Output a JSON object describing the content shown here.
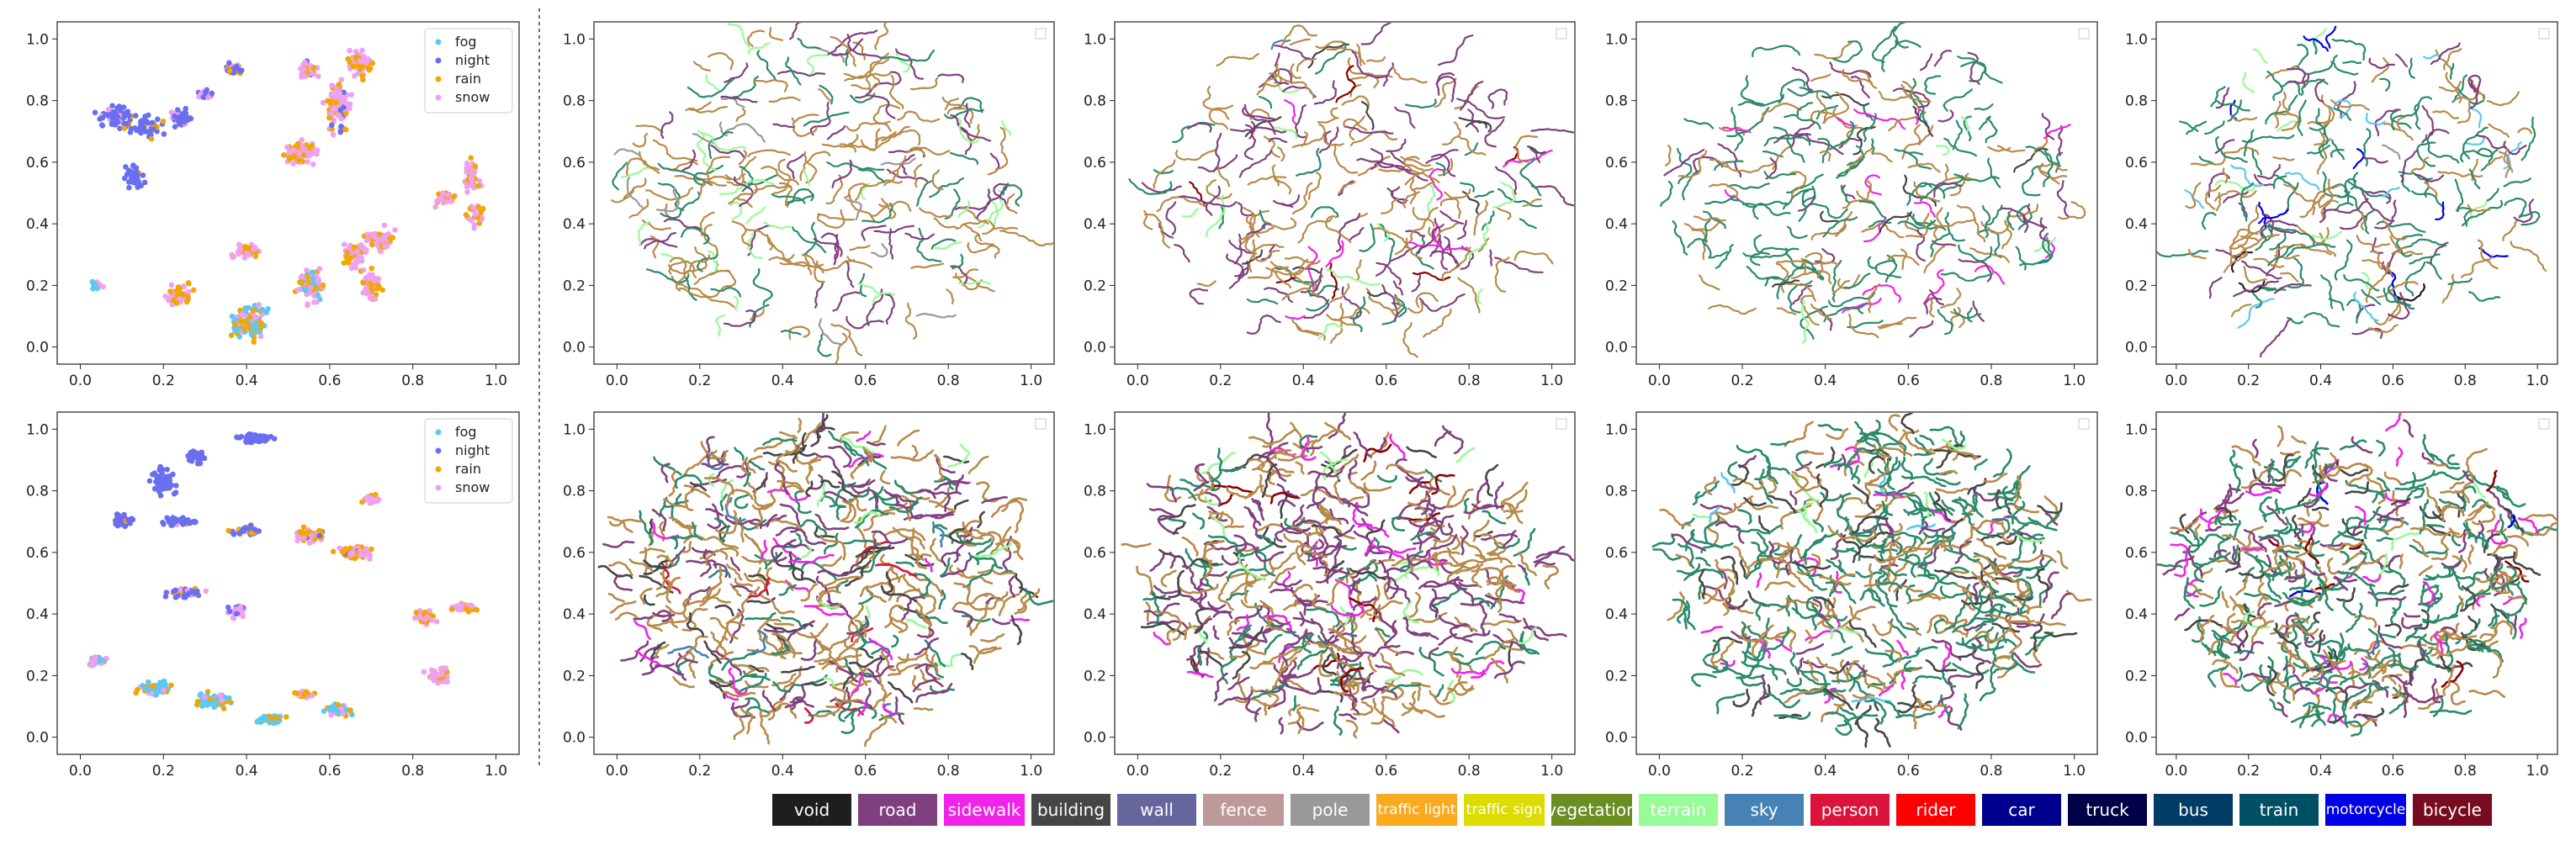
{
  "figure": {
    "description_panels": "2 rows x 5 columns of 2D embedding scatter plots; left column colored by weather condition, other columns colored by semantic class"
  },
  "conditions": [
    {
      "label": "fog",
      "color": "#5bc8f5"
    },
    {
      "label": "night",
      "color": "#6a6ff0"
    },
    {
      "label": "rain",
      "color": "#f0a800"
    },
    {
      "label": "snow",
      "color": "#f0a0f0"
    }
  ],
  "classes": [
    {
      "label": "void",
      "color": "#1e1e1e"
    },
    {
      "label": "road",
      "color": "#80407f"
    },
    {
      "label": "sidewalk",
      "color": "#f023e8"
    },
    {
      "label": "building",
      "color": "#464646"
    },
    {
      "label": "wall",
      "color": "#66669c"
    },
    {
      "label": "fence",
      "color": "#be9999"
    },
    {
      "label": "pole",
      "color": "#999999"
    },
    {
      "label": "traffic light",
      "color": "#faaa1e"
    },
    {
      "label": "traffic sign",
      "color": "#dcdc00"
    },
    {
      "label": "vegetation",
      "color": "#6b8e23"
    },
    {
      "label": "terrain",
      "color": "#98fb98"
    },
    {
      "label": "sky",
      "color": "#4682b4"
    },
    {
      "label": "person",
      "color": "#dc143c"
    },
    {
      "label": "rider",
      "color": "#ff0000"
    },
    {
      "label": "car",
      "color": "#00008e"
    },
    {
      "label": "truck",
      "color": "#000046"
    },
    {
      "label": "bus",
      "color": "#003c64"
    },
    {
      "label": "train",
      "color": "#005064"
    },
    {
      "label": "motorcycle",
      "color": "#0000e6"
    },
    {
      "label": "bicycle",
      "color": "#770b20"
    }
  ],
  "chart_data": [
    {
      "type": "scatter",
      "row": 0,
      "col": 0,
      "colored_by": "condition",
      "xlim": [
        0,
        1
      ],
      "ylim": [
        0,
        1
      ],
      "xticks": [
        "0.0",
        "0.2",
        "0.4",
        "0.6",
        "0.8",
        "1.0"
      ],
      "yticks": [
        "0.0",
        "0.2",
        "0.4",
        "0.6",
        "0.8",
        "1.0"
      ],
      "legend": [
        "fog",
        "night",
        "rain",
        "snow"
      ],
      "legend_position": "top-right",
      "clusters": [
        {
          "x": 0.08,
          "y": 0.75,
          "w": 0.05,
          "h": 0.05,
          "n": 50,
          "mix": {
            "night": 0.85,
            "snow": 0.15
          }
        },
        {
          "x": 0.15,
          "y": 0.72,
          "w": 0.06,
          "h": 0.05,
          "n": 50,
          "mix": {
            "night": 0.85,
            "rain": 0.15
          }
        },
        {
          "x": 0.13,
          "y": 0.55,
          "w": 0.03,
          "h": 0.05,
          "n": 40,
          "mix": {
            "night": 0.9,
            "rain": 0.1
          }
        },
        {
          "x": 0.24,
          "y": 0.74,
          "w": 0.04,
          "h": 0.04,
          "n": 40,
          "mix": {
            "night": 0.85,
            "snow": 0.15
          }
        },
        {
          "x": 0.3,
          "y": 0.82,
          "w": 0.03,
          "h": 0.02,
          "n": 20,
          "mix": {
            "night": 0.7,
            "snow": 0.3
          }
        },
        {
          "x": 0.37,
          "y": 0.9,
          "w": 0.03,
          "h": 0.03,
          "n": 40,
          "mix": {
            "night": 0.5,
            "rain": 0.3,
            "snow": 0.2
          }
        },
        {
          "x": 0.55,
          "y": 0.9,
          "w": 0.03,
          "h": 0.04,
          "n": 40,
          "mix": {
            "snow": 0.6,
            "rain": 0.3,
            "night": 0.1
          }
        },
        {
          "x": 0.62,
          "y": 0.78,
          "w": 0.04,
          "h": 0.12,
          "n": 100,
          "mix": {
            "snow": 0.6,
            "rain": 0.35,
            "night": 0.05
          }
        },
        {
          "x": 0.67,
          "y": 0.92,
          "w": 0.04,
          "h": 0.06,
          "n": 60,
          "mix": {
            "snow": 0.6,
            "rain": 0.4
          }
        },
        {
          "x": 0.53,
          "y": 0.63,
          "w": 0.05,
          "h": 0.05,
          "n": 80,
          "mix": {
            "snow": 0.6,
            "rain": 0.4
          }
        },
        {
          "x": 0.94,
          "y": 0.55,
          "w": 0.03,
          "h": 0.08,
          "n": 50,
          "mix": {
            "snow": 0.7,
            "rain": 0.3
          }
        },
        {
          "x": 0.88,
          "y": 0.48,
          "w": 0.04,
          "h": 0.03,
          "n": 30,
          "mix": {
            "snow": 0.6,
            "rain": 0.4
          }
        },
        {
          "x": 0.95,
          "y": 0.42,
          "w": 0.03,
          "h": 0.05,
          "n": 30,
          "mix": {
            "snow": 0.6,
            "rain": 0.4
          }
        },
        {
          "x": 0.04,
          "y": 0.2,
          "w": 0.02,
          "h": 0.02,
          "n": 30,
          "mix": {
            "snow": 0.6,
            "fog": 0.3,
            "rain": 0.1
          }
        },
        {
          "x": 0.24,
          "y": 0.17,
          "w": 0.04,
          "h": 0.05,
          "n": 50,
          "mix": {
            "snow": 0.5,
            "rain": 0.5
          }
        },
        {
          "x": 0.4,
          "y": 0.31,
          "w": 0.04,
          "h": 0.03,
          "n": 40,
          "mix": {
            "snow": 0.5,
            "rain": 0.5
          }
        },
        {
          "x": 0.4,
          "y": 0.08,
          "w": 0.06,
          "h": 0.07,
          "n": 140,
          "mix": {
            "fog": 0.5,
            "rain": 0.3,
            "snow": 0.2
          }
        },
        {
          "x": 0.55,
          "y": 0.2,
          "w": 0.05,
          "h": 0.08,
          "n": 80,
          "mix": {
            "snow": 0.5,
            "rain": 0.3,
            "fog": 0.2
          }
        },
        {
          "x": 0.66,
          "y": 0.3,
          "w": 0.04,
          "h": 0.06,
          "n": 60,
          "mix": {
            "snow": 0.6,
            "rain": 0.4
          }
        },
        {
          "x": 0.72,
          "y": 0.35,
          "w": 0.04,
          "h": 0.05,
          "n": 60,
          "mix": {
            "snow": 0.5,
            "rain": 0.5
          }
        },
        {
          "x": 0.7,
          "y": 0.2,
          "w": 0.03,
          "h": 0.07,
          "n": 60,
          "mix": {
            "snow": 0.7,
            "rain": 0.3
          }
        }
      ]
    },
    {
      "type": "scatter",
      "row": 0,
      "col": 1,
      "colored_by": "class",
      "xlim": [
        0,
        1
      ],
      "ylim": [
        0,
        1
      ],
      "style": "sparse",
      "seed": 11,
      "xticks": [
        "0.0",
        "0.2",
        "0.4",
        "0.6",
        "0.8",
        "1.0"
      ],
      "yticks": [
        "0.0",
        "0.2",
        "0.4",
        "0.6",
        "0.8",
        "1.0"
      ],
      "palette": [
        {
          "c": "#b88a4a",
          "w": 45
        },
        {
          "c": "#80407f",
          "w": 20
        },
        {
          "c": "#2a8a6a",
          "w": 22
        },
        {
          "c": "#98fb98",
          "w": 10
        },
        {
          "c": "#999999",
          "w": 3
        }
      ]
    },
    {
      "type": "scatter",
      "row": 0,
      "col": 2,
      "colored_by": "class",
      "xlim": [
        0,
        1
      ],
      "ylim": [
        0,
        1
      ],
      "style": "sparse",
      "seed": 23,
      "xticks": [
        "0.0",
        "0.2",
        "0.4",
        "0.6",
        "0.8",
        "1.0"
      ],
      "yticks": [
        "0.0",
        "0.2",
        "0.4",
        "0.6",
        "0.8",
        "1.0"
      ],
      "palette": [
        {
          "c": "#b88a4a",
          "w": 42
        },
        {
          "c": "#80407f",
          "w": 32
        },
        {
          "c": "#2a8a6a",
          "w": 10
        },
        {
          "c": "#98fb98",
          "w": 6
        },
        {
          "c": "#f023e8",
          "w": 4
        },
        {
          "c": "#464646",
          "w": 3
        },
        {
          "c": "#8b0000",
          "w": 2
        },
        {
          "c": "#4682b4",
          "w": 1
        }
      ]
    },
    {
      "type": "scatter",
      "row": 0,
      "col": 3,
      "colored_by": "class",
      "xlim": [
        0,
        1
      ],
      "ylim": [
        0,
        1
      ],
      "style": "sparse",
      "seed": 37,
      "xticks": [
        "0.0",
        "0.2",
        "0.4",
        "0.6",
        "0.8",
        "1.0"
      ],
      "yticks": [
        "0.0",
        "0.2",
        "0.4",
        "0.6",
        "0.8",
        "1.0"
      ],
      "palette": [
        {
          "c": "#2a8a6a",
          "w": 45
        },
        {
          "c": "#b88a4a",
          "w": 32
        },
        {
          "c": "#80407f",
          "w": 14
        },
        {
          "c": "#f023e8",
          "w": 5
        },
        {
          "c": "#464646",
          "w": 3
        },
        {
          "c": "#98fb98",
          "w": 1
        }
      ]
    },
    {
      "type": "scatter",
      "row": 0,
      "col": 4,
      "colored_by": "class",
      "xlim": [
        0,
        1
      ],
      "ylim": [
        0,
        1
      ],
      "style": "sparse",
      "seed": 53,
      "xticks": [
        "0.0",
        "0.2",
        "0.4",
        "0.6",
        "0.8",
        "1.0"
      ],
      "yticks": [
        "0.0",
        "0.2",
        "0.4",
        "0.6",
        "0.8",
        "1.0"
      ],
      "palette": [
        {
          "c": "#2a8a6a",
          "w": 38
        },
        {
          "c": "#b88a4a",
          "w": 32
        },
        {
          "c": "#80407f",
          "w": 14
        },
        {
          "c": "#98fb98",
          "w": 5
        },
        {
          "c": "#1e1e1e",
          "w": 4
        },
        {
          "c": "#0000e6",
          "w": 3
        },
        {
          "c": "#5bc8f5",
          "w": 3
        },
        {
          "c": "#999999",
          "w": 1
        }
      ]
    },
    {
      "type": "scatter",
      "row": 1,
      "col": 0,
      "colored_by": "condition",
      "xlim": [
        0,
        1
      ],
      "ylim": [
        0,
        1
      ],
      "xticks": [
        "0.0",
        "0.2",
        "0.4",
        "0.6",
        "0.8",
        "1.0"
      ],
      "yticks": [
        "0.0",
        "0.2",
        "0.4",
        "0.6",
        "0.8",
        "1.0"
      ],
      "legend": [
        "fog",
        "night",
        "rain",
        "snow"
      ],
      "legend_position": "top-right",
      "clusters": [
        {
          "x": 0.42,
          "y": 0.97,
          "w": 0.06,
          "h": 0.02,
          "n": 60,
          "mix": {
            "night": 1.0
          }
        },
        {
          "x": 0.28,
          "y": 0.91,
          "w": 0.03,
          "h": 0.03,
          "n": 30,
          "mix": {
            "night": 1.0
          }
        },
        {
          "x": 0.2,
          "y": 0.83,
          "w": 0.04,
          "h": 0.06,
          "n": 60,
          "mix": {
            "night": 1.0
          }
        },
        {
          "x": 0.1,
          "y": 0.7,
          "w": 0.04,
          "h": 0.03,
          "n": 40,
          "mix": {
            "night": 0.9,
            "rain": 0.1
          }
        },
        {
          "x": 0.24,
          "y": 0.7,
          "w": 0.06,
          "h": 0.02,
          "n": 40,
          "mix": {
            "night": 0.7,
            "rain": 0.2,
            "snow": 0.1
          }
        },
        {
          "x": 0.4,
          "y": 0.67,
          "w": 0.06,
          "h": 0.02,
          "n": 40,
          "mix": {
            "night": 0.6,
            "rain": 0.2,
            "snow": 0.2
          }
        },
        {
          "x": 0.55,
          "y": 0.66,
          "w": 0.05,
          "h": 0.03,
          "n": 50,
          "mix": {
            "snow": 0.5,
            "rain": 0.4,
            "night": 0.1
          }
        },
        {
          "x": 0.66,
          "y": 0.6,
          "w": 0.06,
          "h": 0.03,
          "n": 60,
          "mix": {
            "snow": 0.5,
            "rain": 0.4,
            "night": 0.1
          }
        },
        {
          "x": 0.7,
          "y": 0.77,
          "w": 0.03,
          "h": 0.02,
          "n": 30,
          "mix": {
            "snow": 0.7,
            "rain": 0.3
          }
        },
        {
          "x": 0.26,
          "y": 0.47,
          "w": 0.06,
          "h": 0.02,
          "n": 40,
          "mix": {
            "night": 0.8,
            "rain": 0.1,
            "snow": 0.1
          }
        },
        {
          "x": 0.38,
          "y": 0.41,
          "w": 0.03,
          "h": 0.03,
          "n": 30,
          "mix": {
            "snow": 0.6,
            "night": 0.4
          }
        },
        {
          "x": 0.83,
          "y": 0.39,
          "w": 0.04,
          "h": 0.03,
          "n": 40,
          "mix": {
            "snow": 0.5,
            "rain": 0.5
          }
        },
        {
          "x": 0.92,
          "y": 0.42,
          "w": 0.04,
          "h": 0.02,
          "n": 40,
          "mix": {
            "snow": 0.6,
            "rain": 0.4
          }
        },
        {
          "x": 0.86,
          "y": 0.2,
          "w": 0.04,
          "h": 0.04,
          "n": 40,
          "mix": {
            "snow": 0.6,
            "rain": 0.4
          }
        },
        {
          "x": 0.04,
          "y": 0.25,
          "w": 0.03,
          "h": 0.02,
          "n": 30,
          "mix": {
            "snow": 0.4,
            "fog": 0.4,
            "rain": 0.2
          }
        },
        {
          "x": 0.18,
          "y": 0.16,
          "w": 0.06,
          "h": 0.03,
          "n": 60,
          "mix": {
            "fog": 0.6,
            "rain": 0.3,
            "snow": 0.1
          }
        },
        {
          "x": 0.32,
          "y": 0.12,
          "w": 0.06,
          "h": 0.03,
          "n": 70,
          "mix": {
            "fog": 0.6,
            "rain": 0.3,
            "snow": 0.1
          }
        },
        {
          "x": 0.46,
          "y": 0.06,
          "w": 0.05,
          "h": 0.02,
          "n": 40,
          "mix": {
            "fog": 0.8,
            "rain": 0.2
          }
        },
        {
          "x": 0.62,
          "y": 0.09,
          "w": 0.05,
          "h": 0.03,
          "n": 40,
          "mix": {
            "fog": 0.5,
            "snow": 0.3,
            "rain": 0.2
          }
        },
        {
          "x": 0.54,
          "y": 0.14,
          "w": 0.03,
          "h": 0.02,
          "n": 20,
          "mix": {
            "snow": 0.5,
            "rain": 0.5
          }
        }
      ]
    },
    {
      "type": "scatter",
      "row": 1,
      "col": 1,
      "colored_by": "class",
      "xlim": [
        0,
        1
      ],
      "ylim": [
        0,
        1
      ],
      "style": "dense",
      "seed": 71,
      "xticks": [
        "0.0",
        "0.2",
        "0.4",
        "0.6",
        "0.8",
        "1.0"
      ],
      "yticks": [
        "0.0",
        "0.2",
        "0.4",
        "0.6",
        "0.8",
        "1.0"
      ],
      "palette": [
        {
          "c": "#b88a4a",
          "w": 40
        },
        {
          "c": "#80407f",
          "w": 24
        },
        {
          "c": "#2a8a6a",
          "w": 18
        },
        {
          "c": "#464646",
          "w": 10
        },
        {
          "c": "#f023e8",
          "w": 3
        },
        {
          "c": "#98fb98",
          "w": 3
        },
        {
          "c": "#dc143c",
          "w": 1
        },
        {
          "c": "#4682b4",
          "w": 1
        }
      ]
    },
    {
      "type": "scatter",
      "row": 1,
      "col": 2,
      "colored_by": "class",
      "xlim": [
        0,
        1
      ],
      "ylim": [
        0,
        1
      ],
      "style": "dense",
      "seed": 89,
      "xticks": [
        "0.0",
        "0.2",
        "0.4",
        "0.6",
        "0.8",
        "1.0"
      ],
      "yticks": [
        "0.0",
        "0.2",
        "0.4",
        "0.6",
        "0.8",
        "1.0"
      ],
      "palette": [
        {
          "c": "#80407f",
          "w": 36
        },
        {
          "c": "#b88a4a",
          "w": 36
        },
        {
          "c": "#2a8a6a",
          "w": 12
        },
        {
          "c": "#464646",
          "w": 8
        },
        {
          "c": "#f023e8",
          "w": 3
        },
        {
          "c": "#98fb98",
          "w": 3
        },
        {
          "c": "#8b0000",
          "w": 2
        }
      ]
    },
    {
      "type": "scatter",
      "row": 1,
      "col": 3,
      "colored_by": "class",
      "xlim": [
        0,
        1
      ],
      "ylim": [
        0,
        1
      ],
      "style": "dense",
      "seed": 97,
      "xticks": [
        "0.0",
        "0.2",
        "0.4",
        "0.6",
        "0.8",
        "1.0"
      ],
      "yticks": [
        "0.0",
        "0.2",
        "0.4",
        "0.6",
        "0.8",
        "1.0"
      ],
      "palette": [
        {
          "c": "#2a8a6a",
          "w": 46
        },
        {
          "c": "#b88a4a",
          "w": 26
        },
        {
          "c": "#464646",
          "w": 10
        },
        {
          "c": "#80407f",
          "w": 10
        },
        {
          "c": "#f023e8",
          "w": 4
        },
        {
          "c": "#98fb98",
          "w": 3
        },
        {
          "c": "#5bc8f5",
          "w": 1
        }
      ]
    },
    {
      "type": "scatter",
      "row": 1,
      "col": 4,
      "colored_by": "class",
      "xlim": [
        0,
        1
      ],
      "ylim": [
        0,
        1
      ],
      "style": "dense",
      "seed": 113,
      "xticks": [
        "0.0",
        "0.2",
        "0.4",
        "0.6",
        "0.8",
        "1.0"
      ],
      "yticks": [
        "0.0",
        "0.2",
        "0.4",
        "0.6",
        "0.8",
        "1.0"
      ],
      "palette": [
        {
          "c": "#2a8a6a",
          "w": 42
        },
        {
          "c": "#b88a4a",
          "w": 28
        },
        {
          "c": "#80407f",
          "w": 12
        },
        {
          "c": "#464646",
          "w": 8
        },
        {
          "c": "#f023e8",
          "w": 5
        },
        {
          "c": "#8b0000",
          "w": 2
        },
        {
          "c": "#98fb98",
          "w": 2
        },
        {
          "c": "#0000e6",
          "w": 1
        }
      ]
    }
  ]
}
